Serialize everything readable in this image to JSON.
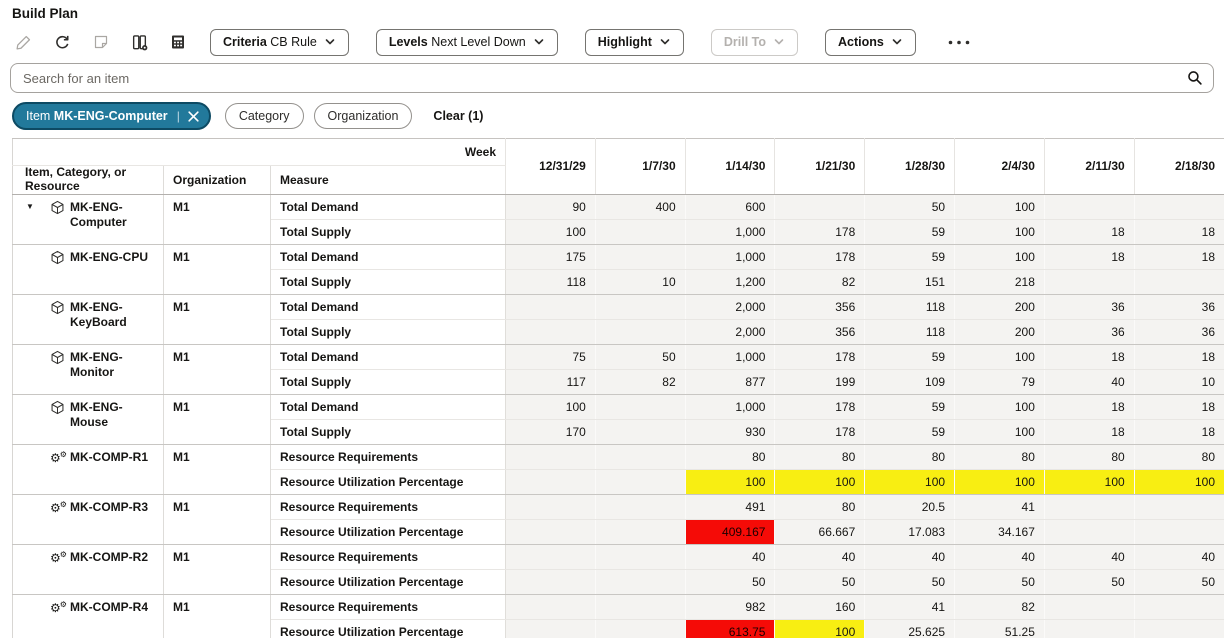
{
  "page": {
    "title": "Build Plan"
  },
  "toolbar": {
    "criteria_label": "Criteria",
    "criteria_value": "CB Rule",
    "levels_label": "Levels",
    "levels_value": "Next Level Down",
    "highlight_label": "Highlight",
    "drill_to_label": "Drill To",
    "actions_label": "Actions"
  },
  "search": {
    "placeholder": "Search for an item"
  },
  "filters": {
    "active_chip": {
      "prefix": "Item",
      "value": "MK-ENG-Computer"
    },
    "chips": [
      "Category",
      "Organization"
    ],
    "clear_label": "Clear (1)"
  },
  "table": {
    "week_label": "Week",
    "col_headers": [
      "Item, Category, or Resource",
      "Organization",
      "Measure"
    ],
    "weeks": [
      "12/31/29",
      "1/7/30",
      "1/14/30",
      "1/21/30",
      "1/28/30",
      "2/4/30",
      "2/11/30",
      "2/18/30"
    ],
    "groups": [
      {
        "icon": "item",
        "caret": true,
        "name": "MK-ENG-Computer",
        "org": "M1",
        "rows": [
          {
            "measure": "Total Demand",
            "values": [
              "90",
              "400",
              "600",
              "",
              "50",
              "100",
              "",
              ""
            ]
          },
          {
            "measure": "Total Supply",
            "values": [
              "100",
              "",
              "1,000",
              "178",
              "59",
              "100",
              "18",
              "18"
            ]
          }
        ]
      },
      {
        "icon": "item",
        "name": "MK-ENG-CPU",
        "org": "M1",
        "rows": [
          {
            "measure": "Total Demand",
            "values": [
              "175",
              "",
              "1,000",
              "178",
              "59",
              "100",
              "18",
              "18"
            ]
          },
          {
            "measure": "Total Supply",
            "values": [
              "118",
              "10",
              "1,200",
              "82",
              "151",
              "218",
              "",
              ""
            ]
          }
        ]
      },
      {
        "icon": "item",
        "name": "MK-ENG-KeyBoard",
        "org": "M1",
        "rows": [
          {
            "measure": "Total Demand",
            "values": [
              "",
              "",
              "2,000",
              "356",
              "118",
              "200",
              "36",
              "36"
            ]
          },
          {
            "measure": "Total Supply",
            "values": [
              "",
              "",
              "2,000",
              "356",
              "118",
              "200",
              "36",
              "36"
            ]
          }
        ]
      },
      {
        "icon": "item",
        "name": "MK-ENG-Monitor",
        "org": "M1",
        "rows": [
          {
            "measure": "Total Demand",
            "values": [
              "75",
              "50",
              "1,000",
              "178",
              "59",
              "100",
              "18",
              "18"
            ]
          },
          {
            "measure": "Total Supply",
            "values": [
              "117",
              "82",
              "877",
              "199",
              "109",
              "79",
              "40",
              "10"
            ]
          }
        ]
      },
      {
        "icon": "item",
        "name": "MK-ENG-Mouse",
        "org": "M1",
        "rows": [
          {
            "measure": "Total Demand",
            "values": [
              "100",
              "",
              "1,000",
              "178",
              "59",
              "100",
              "18",
              "18"
            ]
          },
          {
            "measure": "Total Supply",
            "values": [
              "170",
              "",
              "930",
              "178",
              "59",
              "100",
              "18",
              "18"
            ]
          }
        ]
      },
      {
        "icon": "resource",
        "name": "MK-COMP-R1",
        "org": "M1",
        "rows": [
          {
            "measure": "Resource Requirements",
            "values": [
              "",
              "",
              "80",
              "80",
              "80",
              "80",
              "80",
              "80"
            ]
          },
          {
            "measure": "Resource Utilization Percentage",
            "values": [
              "",
              "",
              "100",
              "100",
              "100",
              "100",
              "100",
              "100"
            ],
            "highlights": [
              "",
              "",
              "yellow",
              "yellow",
              "yellow",
              "yellow",
              "yellow",
              "yellow"
            ]
          }
        ]
      },
      {
        "icon": "resource",
        "name": "MK-COMP-R3",
        "org": "M1",
        "rows": [
          {
            "measure": "Resource Requirements",
            "values": [
              "",
              "",
              "491",
              "80",
              "20.5",
              "41",
              "",
              ""
            ]
          },
          {
            "measure": "Resource Utilization Percentage",
            "values": [
              "",
              "",
              "409.167",
              "66.667",
              "17.083",
              "34.167",
              "",
              ""
            ],
            "highlights": [
              "",
              "",
              "red",
              "",
              "",
              "",
              "",
              ""
            ]
          }
        ]
      },
      {
        "icon": "resource",
        "name": "MK-COMP-R2",
        "org": "M1",
        "rows": [
          {
            "measure": "Resource Requirements",
            "values": [
              "",
              "",
              "40",
              "40",
              "40",
              "40",
              "40",
              "40"
            ]
          },
          {
            "measure": "Resource Utilization Percentage",
            "values": [
              "",
              "",
              "50",
              "50",
              "50",
              "50",
              "50",
              "50"
            ]
          }
        ]
      },
      {
        "icon": "resource",
        "name": "MK-COMP-R4",
        "org": "M1",
        "rows": [
          {
            "measure": "Resource Requirements",
            "values": [
              "",
              "",
              "982",
              "160",
              "41",
              "82",
              "",
              ""
            ]
          },
          {
            "measure": "Resource Utilization Percentage",
            "values": [
              "",
              "",
              "613.75",
              "100",
              "25.625",
              "51.25",
              "",
              ""
            ],
            "highlights": [
              "",
              "",
              "red",
              "yellow",
              "",
              "",
              "",
              ""
            ]
          }
        ]
      }
    ]
  },
  "colors": {
    "chip_teal": "#22799B",
    "highlight_yellow": "#F8EE12",
    "highlight_red": "#F50B07"
  }
}
